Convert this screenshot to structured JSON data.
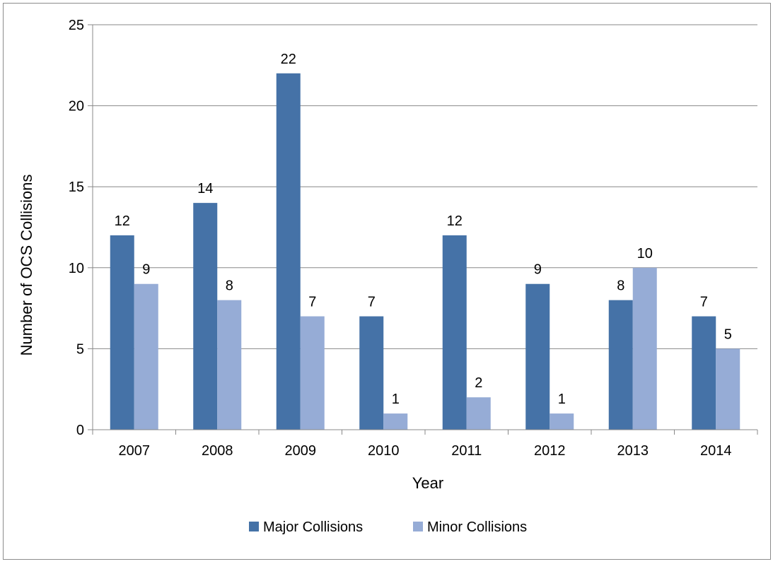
{
  "chart_data": {
    "type": "bar",
    "categories": [
      "2007",
      "2008",
      "2009",
      "2010",
      "2011",
      "2012",
      "2013",
      "2014"
    ],
    "series": [
      {
        "name": "Major Collisions",
        "color": "#4572a7",
        "values": [
          12,
          14,
          22,
          7,
          12,
          9,
          8,
          7
        ]
      },
      {
        "name": "Minor Collisions",
        "color": "#96acd6",
        "values": [
          9,
          8,
          7,
          1,
          2,
          1,
          10,
          5
        ]
      }
    ],
    "title": "",
    "xlabel": "Year",
    "ylabel": "Number of OCS Collisions",
    "ylim": [
      0,
      25
    ],
    "yticks": [
      0,
      5,
      10,
      15,
      20,
      25
    ],
    "grid": true,
    "legend_position": "bottom"
  }
}
